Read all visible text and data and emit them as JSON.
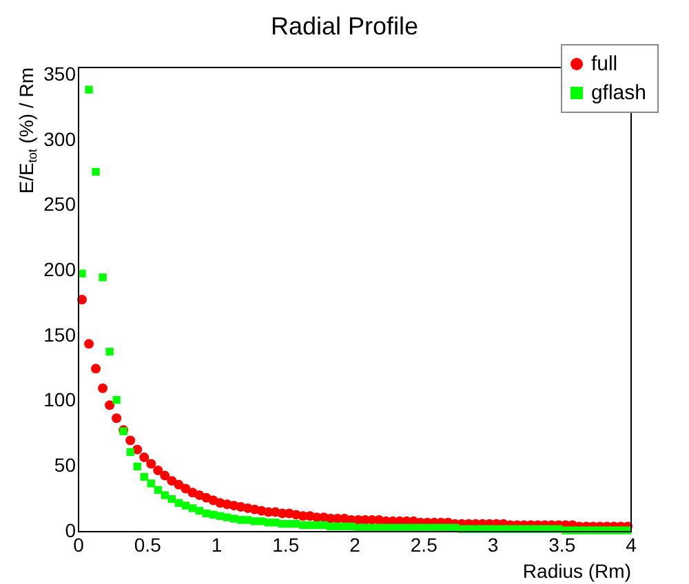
{
  "chart_data": {
    "type": "scatter",
    "title": "Radial Profile",
    "xlabel": "Radius (Rm)",
    "ylabel": "E/E$_{tot}$ (%) / Rm",
    "x": [
      0.025,
      0.075,
      0.125,
      0.175,
      0.225,
      0.275,
      0.325,
      0.375,
      0.425,
      0.475,
      0.525,
      0.575,
      0.625,
      0.675,
      0.725,
      0.775,
      0.825,
      0.875,
      0.925,
      0.975,
      1.025,
      1.075,
      1.125,
      1.175,
      1.225,
      1.275,
      1.325,
      1.375,
      1.425,
      1.475,
      1.525,
      1.575,
      1.625,
      1.675,
      1.725,
      1.775,
      1.825,
      1.875,
      1.925,
      1.975,
      2.025,
      2.075,
      2.125,
      2.175,
      2.225,
      2.275,
      2.325,
      2.375,
      2.425,
      2.475,
      2.525,
      2.575,
      2.625,
      2.675,
      2.725,
      2.775,
      2.825,
      2.875,
      2.925,
      2.975,
      3.025,
      3.075,
      3.125,
      3.175,
      3.225,
      3.275,
      3.325,
      3.375,
      3.425,
      3.475,
      3.525,
      3.575,
      3.625,
      3.675,
      3.725,
      3.775,
      3.825,
      3.875,
      3.925,
      3.975
    ],
    "series": [
      {
        "name": "full",
        "color": "#ff0000",
        "marker": "circle",
        "values": [
          178,
          144,
          125,
          110,
          97,
          87,
          78,
          70,
          63,
          57,
          52,
          47,
          43,
          39,
          36,
          33,
          30,
          28,
          26,
          24,
          22,
          21,
          20,
          19,
          18,
          17,
          16,
          15,
          15,
          14,
          14,
          13,
          12,
          12,
          11,
          11,
          10,
          10,
          10,
          9,
          9,
          9,
          9,
          9,
          8,
          8,
          8,
          8,
          8,
          7,
          7,
          7,
          7,
          7,
          6,
          6,
          6,
          6,
          6,
          6,
          6,
          6,
          5,
          5,
          5,
          5,
          5,
          5,
          5,
          5,
          5,
          5,
          4,
          4,
          4,
          4,
          4,
          4,
          4,
          4
        ]
      },
      {
        "name": "gflash",
        "color": "#00ff00",
        "marker": "square",
        "values": [
          198,
          339,
          276,
          195,
          138,
          101,
          77,
          61,
          50,
          42,
          37,
          32,
          28,
          25,
          22,
          20,
          18,
          16,
          14,
          13,
          12,
          11,
          10,
          9,
          9,
          8,
          8,
          7,
          7,
          6,
          6,
          6,
          5,
          5,
          5,
          5,
          4,
          4,
          4,
          4,
          3,
          3,
          3,
          3,
          3,
          3,
          3,
          3,
          3,
          3,
          3,
          3,
          3,
          3,
          3,
          2,
          2,
          2,
          2,
          2,
          2,
          2,
          2,
          2,
          2,
          2,
          2,
          2,
          2,
          2,
          1,
          1,
          1,
          1,
          1,
          1,
          1,
          1,
          1,
          1
        ]
      }
    ],
    "xlim": [
      0,
      4
    ],
    "xticks": [
      0,
      0.5,
      1,
      1.5,
      2,
      2.5,
      3,
      3.5,
      4
    ],
    "ylim": [
      0,
      356
    ],
    "yticks": [
      0,
      50,
      100,
      150,
      200,
      250,
      300,
      350
    ],
    "grid": false,
    "legend": "top right"
  }
}
